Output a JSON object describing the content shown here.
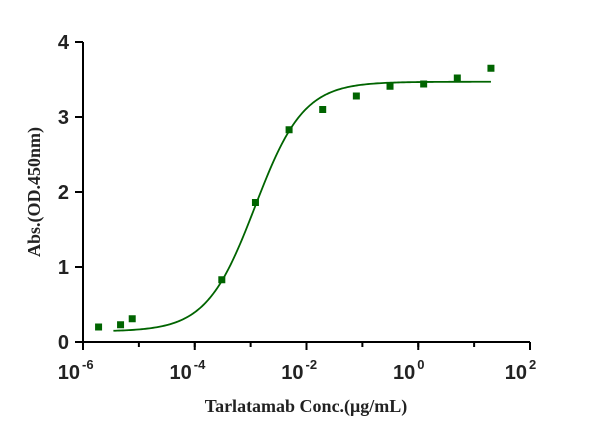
{
  "chart_data": {
    "type": "scatter",
    "title": "",
    "xlabel": "Tarlatamab Conc.(μg/mL)",
    "ylabel": "Abs.(OD.450nm)",
    "x_scale": "log10",
    "xlim": [
      1e-06,
      100
    ],
    "ylim": [
      0,
      4
    ],
    "x_ticks": [
      {
        "base": "10",
        "exp": "-6",
        "value": 1e-06
      },
      {
        "base": "10",
        "exp": "-4",
        "value": 0.0001
      },
      {
        "base": "10",
        "exp": "-2",
        "value": 0.01
      },
      {
        "base": "10",
        "exp": "0",
        "value": 1
      },
      {
        "base": "10",
        "exp": "2",
        "value": 100
      }
    ],
    "y_ticks": [
      "0",
      "1",
      "2",
      "3",
      "4"
    ],
    "grid": false,
    "legend": "none",
    "series": [
      {
        "color": "#006400",
        "marker": "square",
        "x": [
          4.7e-06,
          1.9e-06,
          7.6e-06,
          0.000305,
          0.00122,
          0.00488,
          0.0195,
          0.078,
          0.3125,
          1.25,
          5,
          20
        ],
        "y": [
          0.23,
          0.2,
          0.31,
          0.83,
          1.86,
          2.83,
          3.1,
          3.28,
          3.41,
          3.44,
          3.52,
          3.65
        ]
      }
    ],
    "fit_curve": {
      "model": "4PL",
      "bottom": 0.14,
      "top": 3.47,
      "ec50": 0.0012,
      "hill": 1.0,
      "color": "#006400"
    }
  }
}
